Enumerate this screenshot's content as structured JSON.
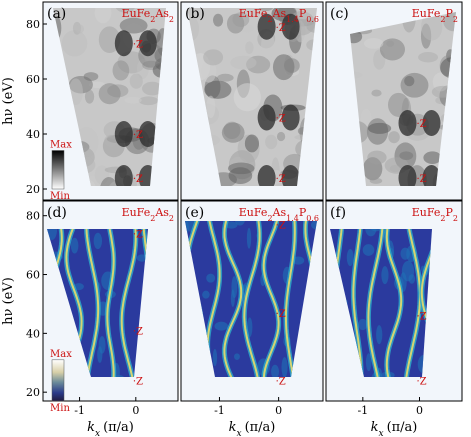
{
  "chart_data": {
    "type": "heatmap",
    "ylabel": "hν (eV)",
    "xlabel_text": "k",
    "xlabel_sub": "x",
    "xlabel_unit": "(π/a)",
    "x_ticks": [
      "-1",
      "0"
    ],
    "x_tick_values": [
      -1,
      0
    ],
    "xlim": [
      -1.65,
      0.75
    ],
    "y_ticks_top": [
      "20",
      "40",
      "60",
      "80"
    ],
    "y_ticks_bottom": [
      "20",
      "40",
      "60",
      "80"
    ],
    "y_tick_values": [
      20,
      40,
      60,
      80
    ],
    "ylim_top": [
      16,
      88
    ],
    "ylim_bottom": [
      17,
      85
    ],
    "colorbar": {
      "max_label": "Max",
      "min_label": "Min"
    },
    "z_label": "Z",
    "panels": [
      {
        "id": "a",
        "label": "(a)",
        "formula": "EuFe2As2",
        "row": 0,
        "col": 0,
        "style": "gray",
        "z_points": [
          {
            "k": 0.0,
            "hv": 73
          },
          {
            "k": 0.0,
            "hv": 40
          },
          {
            "k": 0.0,
            "hv": 24
          }
        ]
      },
      {
        "id": "b",
        "label": "(b)",
        "formula": "EuFe2As1.4P0.6",
        "row": 0,
        "col": 1,
        "style": "gray",
        "z_points": [
          {
            "k": 0.0,
            "hv": 79
          },
          {
            "k": 0.0,
            "hv": 46
          },
          {
            "k": 0.0,
            "hv": 24
          }
        ]
      },
      {
        "id": "c",
        "label": "(c)",
        "formula": "EuFe2P2",
        "row": 0,
        "col": 2,
        "style": "gray",
        "z_points": [
          {
            "k": 0.0,
            "hv": 44
          },
          {
            "k": 0.0,
            "hv": 24
          }
        ]
      },
      {
        "id": "d",
        "label": "(d)",
        "formula": "EuFe2As2",
        "row": 1,
        "col": 0,
        "style": "color",
        "z_points": [
          {
            "k": 0.0,
            "hv": 74
          },
          {
            "k": 0.0,
            "hv": 41
          },
          {
            "k": 0.0,
            "hv": 24
          }
        ]
      },
      {
        "id": "e",
        "label": "(e)",
        "formula": "EuFe2As1.4P0.6",
        "row": 1,
        "col": 1,
        "style": "color",
        "z_points": [
          {
            "k": 0.0,
            "hv": 77
          },
          {
            "k": 0.0,
            "hv": 47
          },
          {
            "k": 0.0,
            "hv": 24
          }
        ]
      },
      {
        "id": "f",
        "label": "(f)",
        "formula": "EuFe2P2",
        "row": 1,
        "col": 2,
        "style": "color",
        "z_points": [
          {
            "k": 0.0,
            "hv": 46
          },
          {
            "k": 0.0,
            "hv": 24
          }
        ]
      }
    ]
  }
}
